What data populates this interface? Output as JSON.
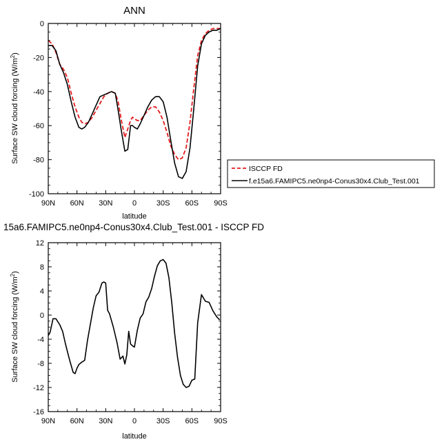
{
  "chart_data": [
    {
      "type": "line",
      "title": "ANN",
      "xlabel": "latitude",
      "ylabel": "Surface SW cloud forcing (W/m",
      "ylabel_sup": "2",
      "ylabel_close": ")",
      "xlim": [
        90,
        -90
      ],
      "ylim": [
        -100,
        0
      ],
      "xticks": [
        {
          "value": 90,
          "label": "90N"
        },
        {
          "value": 60,
          "label": "60N"
        },
        {
          "value": 30,
          "label": "30N"
        },
        {
          "value": 0,
          "label": "0"
        },
        {
          "value": -30,
          "label": "30S"
        },
        {
          "value": -60,
          "label": "60S"
        },
        {
          "value": -90,
          "label": "90S"
        }
      ],
      "yticks": [
        0,
        -20,
        -40,
        -60,
        -80,
        -100
      ],
      "legend_position": "right",
      "series": [
        {
          "name": "ISCCP FD",
          "color": "#e41a1c",
          "dash": "dashed",
          "x": [
            90,
            86,
            82,
            78,
            74,
            70,
            66,
            62,
            58,
            55,
            52,
            48,
            44,
            40,
            36,
            32,
            28,
            24,
            20,
            17,
            14,
            10,
            7,
            4,
            2,
            0,
            -3,
            -6,
            -10,
            -14,
            -18,
            -22,
            -26,
            -30,
            -34,
            -38,
            -42,
            -46,
            -50,
            -54,
            -58,
            -62,
            -66,
            -70,
            -74,
            -78,
            -82,
            -86,
            -90
          ],
          "y": [
            -10,
            -12,
            -17,
            -24,
            -27,
            -32,
            -41,
            -49,
            -55,
            -58,
            -59,
            -58,
            -55,
            -51,
            -47,
            -43,
            -41,
            -40,
            -41,
            -46,
            -56,
            -67,
            -62,
            -57,
            -55,
            -56,
            -57,
            -57,
            -54,
            -51,
            -49,
            -49,
            -52,
            -57,
            -64,
            -72,
            -77,
            -80,
            -79,
            -73,
            -58,
            -38,
            -19,
            -10,
            -6,
            -4,
            -3,
            -3,
            -3
          ]
        },
        {
          "name": "f.e15a6.FAMIPC5.ne0np4-Conus30x4.Club_Test.001",
          "color": "#000000",
          "dash": "solid",
          "x": [
            90,
            86,
            82,
            78,
            74,
            70,
            66,
            62,
            58,
            55,
            52,
            48,
            44,
            40,
            36,
            32,
            28,
            24,
            20,
            17,
            14,
            10,
            7,
            4,
            2,
            0,
            -3,
            -6,
            -10,
            -14,
            -18,
            -22,
            -26,
            -30,
            -34,
            -38,
            -42,
            -46,
            -50,
            -54,
            -58,
            -62,
            -66,
            -70,
            -74,
            -78,
            -82,
            -86,
            -90
          ],
          "y": [
            -13,
            -13,
            -16,
            -24,
            -29,
            -36,
            -46,
            -55,
            -61,
            -62,
            -61,
            -58,
            -53,
            -48,
            -43,
            -42,
            -41,
            -40,
            -41,
            -51,
            -62,
            -75,
            -74,
            -60,
            -60,
            -61,
            -62,
            -59,
            -54,
            -49,
            -45,
            -43,
            -43,
            -46,
            -55,
            -69,
            -82,
            -90,
            -91,
            -87,
            -73,
            -50,
            -25,
            -12,
            -7,
            -5,
            -4,
            -4,
            -3
          ]
        }
      ]
    },
    {
      "type": "line",
      "title": "15a6.FAMIPC5.ne0np4-Conus30x4.Club_Test.001 - ISCCP FD",
      "xlabel": "latitude",
      "ylabel": "Surface SW cloud forcing (W/m",
      "ylabel_sup": "2",
      "ylabel_close": ")",
      "xlim": [
        90,
        -90
      ],
      "ylim": [
        -16,
        12
      ],
      "xticks": [
        {
          "value": 90,
          "label": "90N"
        },
        {
          "value": 60,
          "label": "60N"
        },
        {
          "value": 30,
          "label": "30N"
        },
        {
          "value": 0,
          "label": "0"
        },
        {
          "value": -30,
          "label": "30S"
        },
        {
          "value": -60,
          "label": "60S"
        },
        {
          "value": -90,
          "label": "90S"
        }
      ],
      "yticks": [
        12,
        8,
        4,
        0,
        -4,
        -8,
        -12,
        -16
      ],
      "series": [
        {
          "color": "#000000",
          "x": [
            90,
            88,
            85,
            82,
            78,
            75,
            72,
            68,
            64,
            62,
            60,
            58,
            55,
            52,
            49,
            46,
            43,
            40,
            37,
            34,
            32,
            30,
            28,
            26,
            22,
            18,
            15,
            12,
            10,
            8,
            6,
            4,
            2,
            0,
            -3,
            -6,
            -9,
            -12,
            -15,
            -18,
            -21,
            -24,
            -27,
            -30,
            -33,
            -36,
            -39,
            -42,
            -45,
            -48,
            -51,
            -54,
            -57,
            -60,
            -63,
            -66,
            -70,
            -74,
            -78,
            -82,
            -86,
            -89
          ],
          "y": [
            -3.4,
            -2.8,
            -0.6,
            -0.6,
            -1.6,
            -2.7,
            -4.8,
            -7.3,
            -9.5,
            -9.7,
            -8.8,
            -8.2,
            -7.8,
            -7.5,
            -4.2,
            -1.5,
            1.2,
            3.2,
            3.8,
            5.3,
            5.5,
            5.3,
            0.8,
            0.2,
            -2.0,
            -4.7,
            -7.3,
            -6.8,
            -8.1,
            -6.6,
            -2.7,
            -4.8,
            -5.1,
            -5.3,
            -2.5,
            -0.5,
            0.2,
            2.2,
            3.0,
            4.4,
            6.5,
            8.2,
            9.0,
            9.2,
            8.6,
            6.2,
            2.0,
            -3.0,
            -7.0,
            -10.0,
            -11.5,
            -12.0,
            -11.8,
            -10.8,
            -10.6,
            -1.3,
            3.4,
            2.3,
            2.1,
            0.7,
            -0.3,
            -0.8
          ]
        }
      ]
    }
  ],
  "legend": {
    "items": [
      {
        "label": "ISCCP FD",
        "color": "#e41a1c",
        "dash": "dashed"
      },
      {
        "label": "f.e15a6.FAMIPC5.ne0np4-Conus30x4.Club_Test.001",
        "color": "#000000",
        "dash": "solid"
      }
    ]
  }
}
